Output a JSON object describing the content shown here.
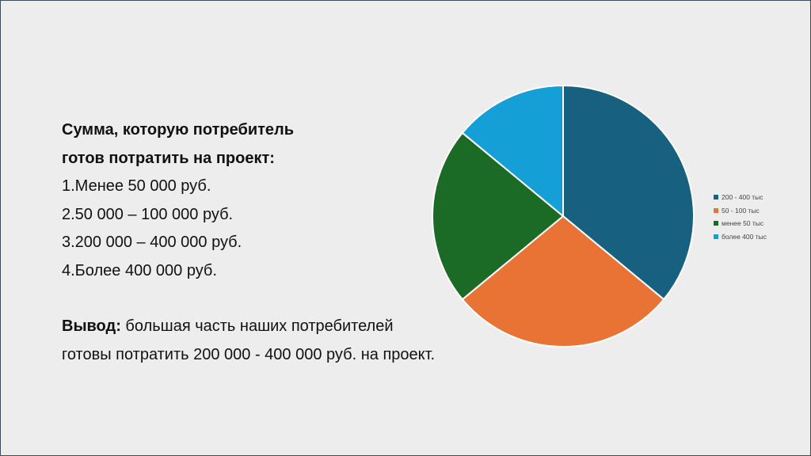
{
  "text": {
    "heading_line1": "Сумма, которую потребитель",
    "heading_line2": "готов потратить на проект:",
    "items": [
      "1.Менее 50 000 руб.",
      "2.50 000 – 100 000 руб.",
      "3.200 000 – 400 000 руб.",
      "4.Более 400 000 руб."
    ],
    "conclusion_label": "Вывод:",
    "conclusion_rest": " большая часть наших потребителей",
    "conclusion_line2": "готовы потратить 200 000 - 400 000 руб. на проект."
  },
  "chart_data": {
    "type": "pie",
    "title": "",
    "series": [
      {
        "name": "200  - 400 тыс",
        "value": 36,
        "color": "#17607f"
      },
      {
        "name": "50 - 100 тыс",
        "value": 28,
        "color": "#e97334"
      },
      {
        "name": "менее 50 тыс",
        "value": 22,
        "color": "#1b6b26"
      },
      {
        "name": "более 400 тыс",
        "value": 14,
        "color": "#14a0d7"
      }
    ],
    "start_angle_deg": 0,
    "direction": "clockwise",
    "legend_position": "right"
  }
}
